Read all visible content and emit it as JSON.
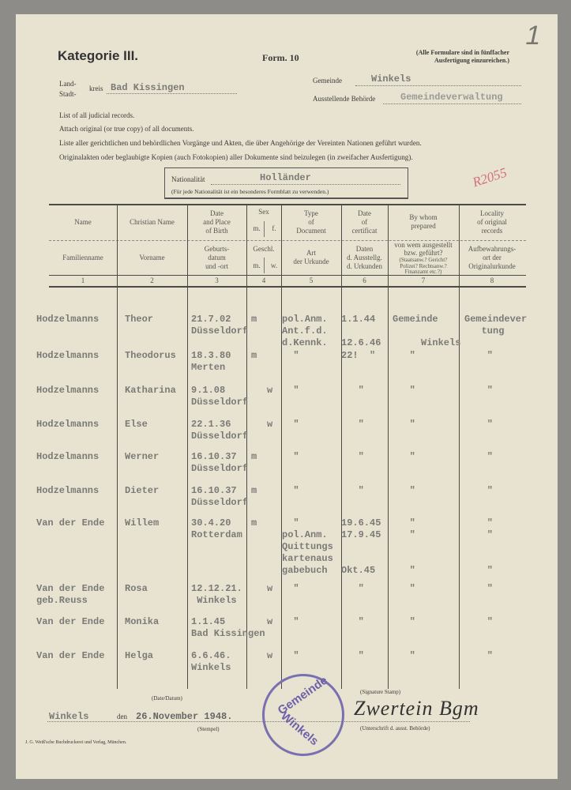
{
  "header": {
    "category": "Kategorie III.",
    "form": "Form. 10",
    "note": "(Alle Formulare sind in fünffacher\nAusfertigung einzureichen.)",
    "pencil_mark": "1",
    "red_pencil_note": "R2055"
  },
  "district": {
    "land_label": "Land-",
    "stadt_label": "Stadt-",
    "kreis_label": "kreis",
    "kreis_value": "Bad Kissingen",
    "gemeinde_label": "Gemeinde",
    "gemeinde_value": "Winkels",
    "authority_label": "Ausstellende Behörde",
    "authority_value": "Gemeindeverwaltung"
  },
  "instructions": [
    "List of all judicial records.",
    "Attach original (or true copy) of all documents.",
    "Liste aller gerichtlichen und behördlichen Vorgänge und Akten, die über Angehörige der Vereinten Nationen geführt wurden.",
    "Originalakten oder beglaubigte Kopien (auch Fotokopien) aller Dokumente sind beizulegen (in zweifacher Ausfertigung)."
  ],
  "nationality": {
    "label": "Nationalität",
    "value": "Holländer",
    "note": "(Für jede Nationalität ist ein besonderes Formblatt zu verwenden.)"
  },
  "table": {
    "columns": [
      {
        "en": "Name",
        "de": "Familienname",
        "num": "1"
      },
      {
        "en": "Christian Name",
        "de": "Vorname",
        "num": "2"
      },
      {
        "en": "Date\nand Place\nof Birth",
        "de": "Geburts-\ndatum\nund -ort",
        "num": "3"
      },
      {
        "en": "Sex",
        "de": "Geschl.",
        "num": "4",
        "sub_en": [
          "m.",
          "f."
        ],
        "sub_de": [
          "m.",
          "w."
        ]
      },
      {
        "en": "Type\nof\nDocument",
        "de": "Art\nder Urkunde",
        "num": "5"
      },
      {
        "en": "Date\nof\ncertificat",
        "de": "Daten\nd. Ausstellg.\nd. Urkunden",
        "num": "6"
      },
      {
        "en": "By whom\nprepared",
        "de": "von wem ausgestellt\nbzw. geführt?",
        "de_small": "(Staatsanw.? Gericht?\nPolizei? Rechtsanw.?\nFinanzamt etc.?)",
        "num": "7"
      },
      {
        "en": "Locality\nof original\nrecords",
        "de": "Aufbewahrungs-\nort der\nOriginalurkunde",
        "num": "8"
      }
    ],
    "rows": [
      {
        "family": "Hodzelmanns",
        "given": "Theor",
        "birth": "21.7.02\nDüsseldorf",
        "m": "m",
        "w": "",
        "doc": "pol.Anm.\nAnt.f.d.\nd.Kennk.",
        "cert": "1.1.44\n\n12.6.46",
        "prep": "Gemeinde\n\n     Winkels",
        "loc": "Gemeindever\n   tung"
      },
      {
        "family": "Hodzelmanns",
        "given": "Theodorus",
        "birth": "18.3.80\nMerten",
        "m": "m",
        "w": "",
        "doc": "  \"",
        "cert": "22!  \"",
        "prep": "   \"",
        "loc": "    \""
      },
      {
        "family": "Hodzelmanns",
        "given": "Katharina",
        "birth": "9.1.08\nDüsseldorf",
        "m": "",
        "w": "w",
        "doc": "  \"",
        "cert": "   \"",
        "prep": "   \"",
        "loc": "    \""
      },
      {
        "family": "Hodzelmanns",
        "given": "Else",
        "birth": "22.1.36\nDüsseldorf",
        "m": "",
        "w": "w",
        "doc": "  \"",
        "cert": "   \"",
        "prep": "   \"",
        "loc": "    \""
      },
      {
        "family": "Hodzelmanns",
        "given": "Werner",
        "birth": "16.10.37\nDüsseldorf",
        "m": "m",
        "w": "",
        "doc": "  \"",
        "cert": "   \"",
        "prep": "   \"",
        "loc": "    \""
      },
      {
        "family": "Hodzelmanns",
        "given": "Dieter",
        "birth": "16.10.37\nDüsseldorf",
        "m": "m",
        "w": "",
        "doc": "  \"",
        "cert": "   \"",
        "prep": "   \"",
        "loc": "    \""
      },
      {
        "family": "Van der Ende",
        "given": "Willem",
        "birth": "30.4.20\nRotterdam",
        "m": "m",
        "w": "",
        "doc": "  \"\npol.Anm.\nQuittungs\nkartenaus\ngabebuch",
        "cert": "19.6.45\n17.9.45\n\n\nOkt.45",
        "prep": "   \"\n   \"\n\n\n   \"",
        "loc": "    \"\n    \"\n\n\n    \""
      },
      {
        "family": "Van der Ende\ngeb.Reuss",
        "given": "Rosa",
        "birth": "12.12.21.\n Winkels",
        "m": "",
        "w": "w",
        "doc": "  \"",
        "cert": "   \"",
        "prep": "   \"",
        "loc": "    \""
      },
      {
        "family": "Van der Ende",
        "given": "Monika",
        "birth": "1.1.45\nBad Kissingen",
        "m": "",
        "w": "w",
        "doc": "  \"",
        "cert": "   \"",
        "prep": "   \"",
        "loc": "    \""
      },
      {
        "family": "Van der Ende",
        "given": "Helga",
        "birth": "6.6.46.\nWinkels",
        "m": "",
        "w": "w",
        "doc": "  \"",
        "cert": "   \"",
        "prep": "   \"",
        "loc": "    \""
      }
    ]
  },
  "footer": {
    "date_label": "(Date/Datum)",
    "place_value": "Winkels",
    "den": "den",
    "date_value": "26.November 1948.",
    "stempel_label": "(Stempel)",
    "signature_label": "(Signature Stamp)",
    "signature_sub_label": "(Unterschrift d. ausst. Behörde)",
    "signature": "Zwertein Bgm",
    "stamp_top": "Gemeinde",
    "stamp_bottom": "Winkels",
    "printer": "J. G. Weiß'sche Buchdruckerei und Verlag, München."
  },
  "colors": {
    "paper": "#e8e3d1",
    "typewriter": "#7a7a76",
    "stamp": "#6d62a8",
    "red_pencil": "#d07080"
  }
}
